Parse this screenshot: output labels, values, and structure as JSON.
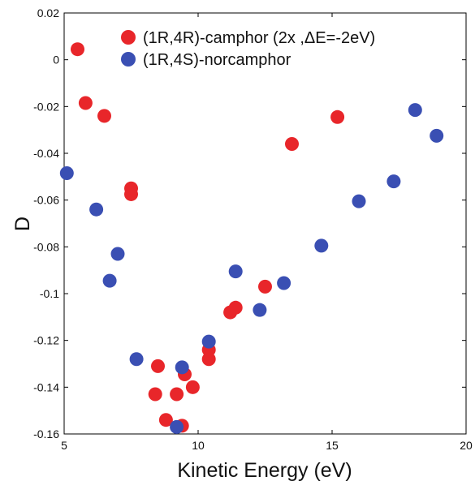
{
  "chart_data": {
    "type": "scatter",
    "title": "",
    "xlabel": "Kinetic Energy (eV)",
    "ylabel": "D",
    "xlim": [
      5,
      20
    ],
    "ylim": [
      -0.16,
      0.02
    ],
    "xticks": [
      "5",
      "10",
      "15",
      "20"
    ],
    "yticks": [
      "0.02",
      "0",
      "-0.02",
      "-0.04",
      "-0.06",
      "-0.08",
      "-0.1",
      "-0.12",
      "-0.14",
      "-0.16"
    ],
    "grid": false,
    "legend_position": "top-right",
    "series": [
      {
        "name": "(1R,4R)-camphor (2x ,ΔE=-2eV)",
        "color": "#e8262a",
        "points": [
          [
            5.5,
            0.0045
          ],
          [
            5.8,
            -0.0185
          ],
          [
            6.5,
            -0.024
          ],
          [
            7.5,
            -0.055
          ],
          [
            7.5,
            -0.0575
          ],
          [
            8.5,
            -0.131
          ],
          [
            8.4,
            -0.143
          ],
          [
            8.8,
            -0.154
          ],
          [
            9.2,
            -0.143
          ],
          [
            9.4,
            -0.1565
          ],
          [
            9.5,
            -0.1345
          ],
          [
            9.8,
            -0.14
          ],
          [
            10.4,
            -0.124
          ],
          [
            10.4,
            -0.128
          ],
          [
            11.2,
            -0.108
          ],
          [
            11.4,
            -0.106
          ],
          [
            12.5,
            -0.097
          ],
          [
            13.5,
            -0.036
          ],
          [
            15.2,
            -0.0245
          ]
        ]
      },
      {
        "name": "(1R,4S)-norcamphor",
        "color": "#3a4fb3",
        "points": [
          [
            5.1,
            -0.0485
          ],
          [
            6.2,
            -0.064
          ],
          [
            6.7,
            -0.0945
          ],
          [
            7.0,
            -0.083
          ],
          [
            7.7,
            -0.128
          ],
          [
            9.2,
            -0.157
          ],
          [
            9.4,
            -0.1315
          ],
          [
            10.4,
            -0.1205
          ],
          [
            11.4,
            -0.0905
          ],
          [
            12.3,
            -0.107
          ],
          [
            13.2,
            -0.0955
          ],
          [
            14.6,
            -0.0795
          ],
          [
            16.0,
            -0.0605
          ],
          [
            17.3,
            -0.052
          ],
          [
            18.1,
            -0.0215
          ],
          [
            18.9,
            -0.0325
          ]
        ]
      }
    ]
  }
}
